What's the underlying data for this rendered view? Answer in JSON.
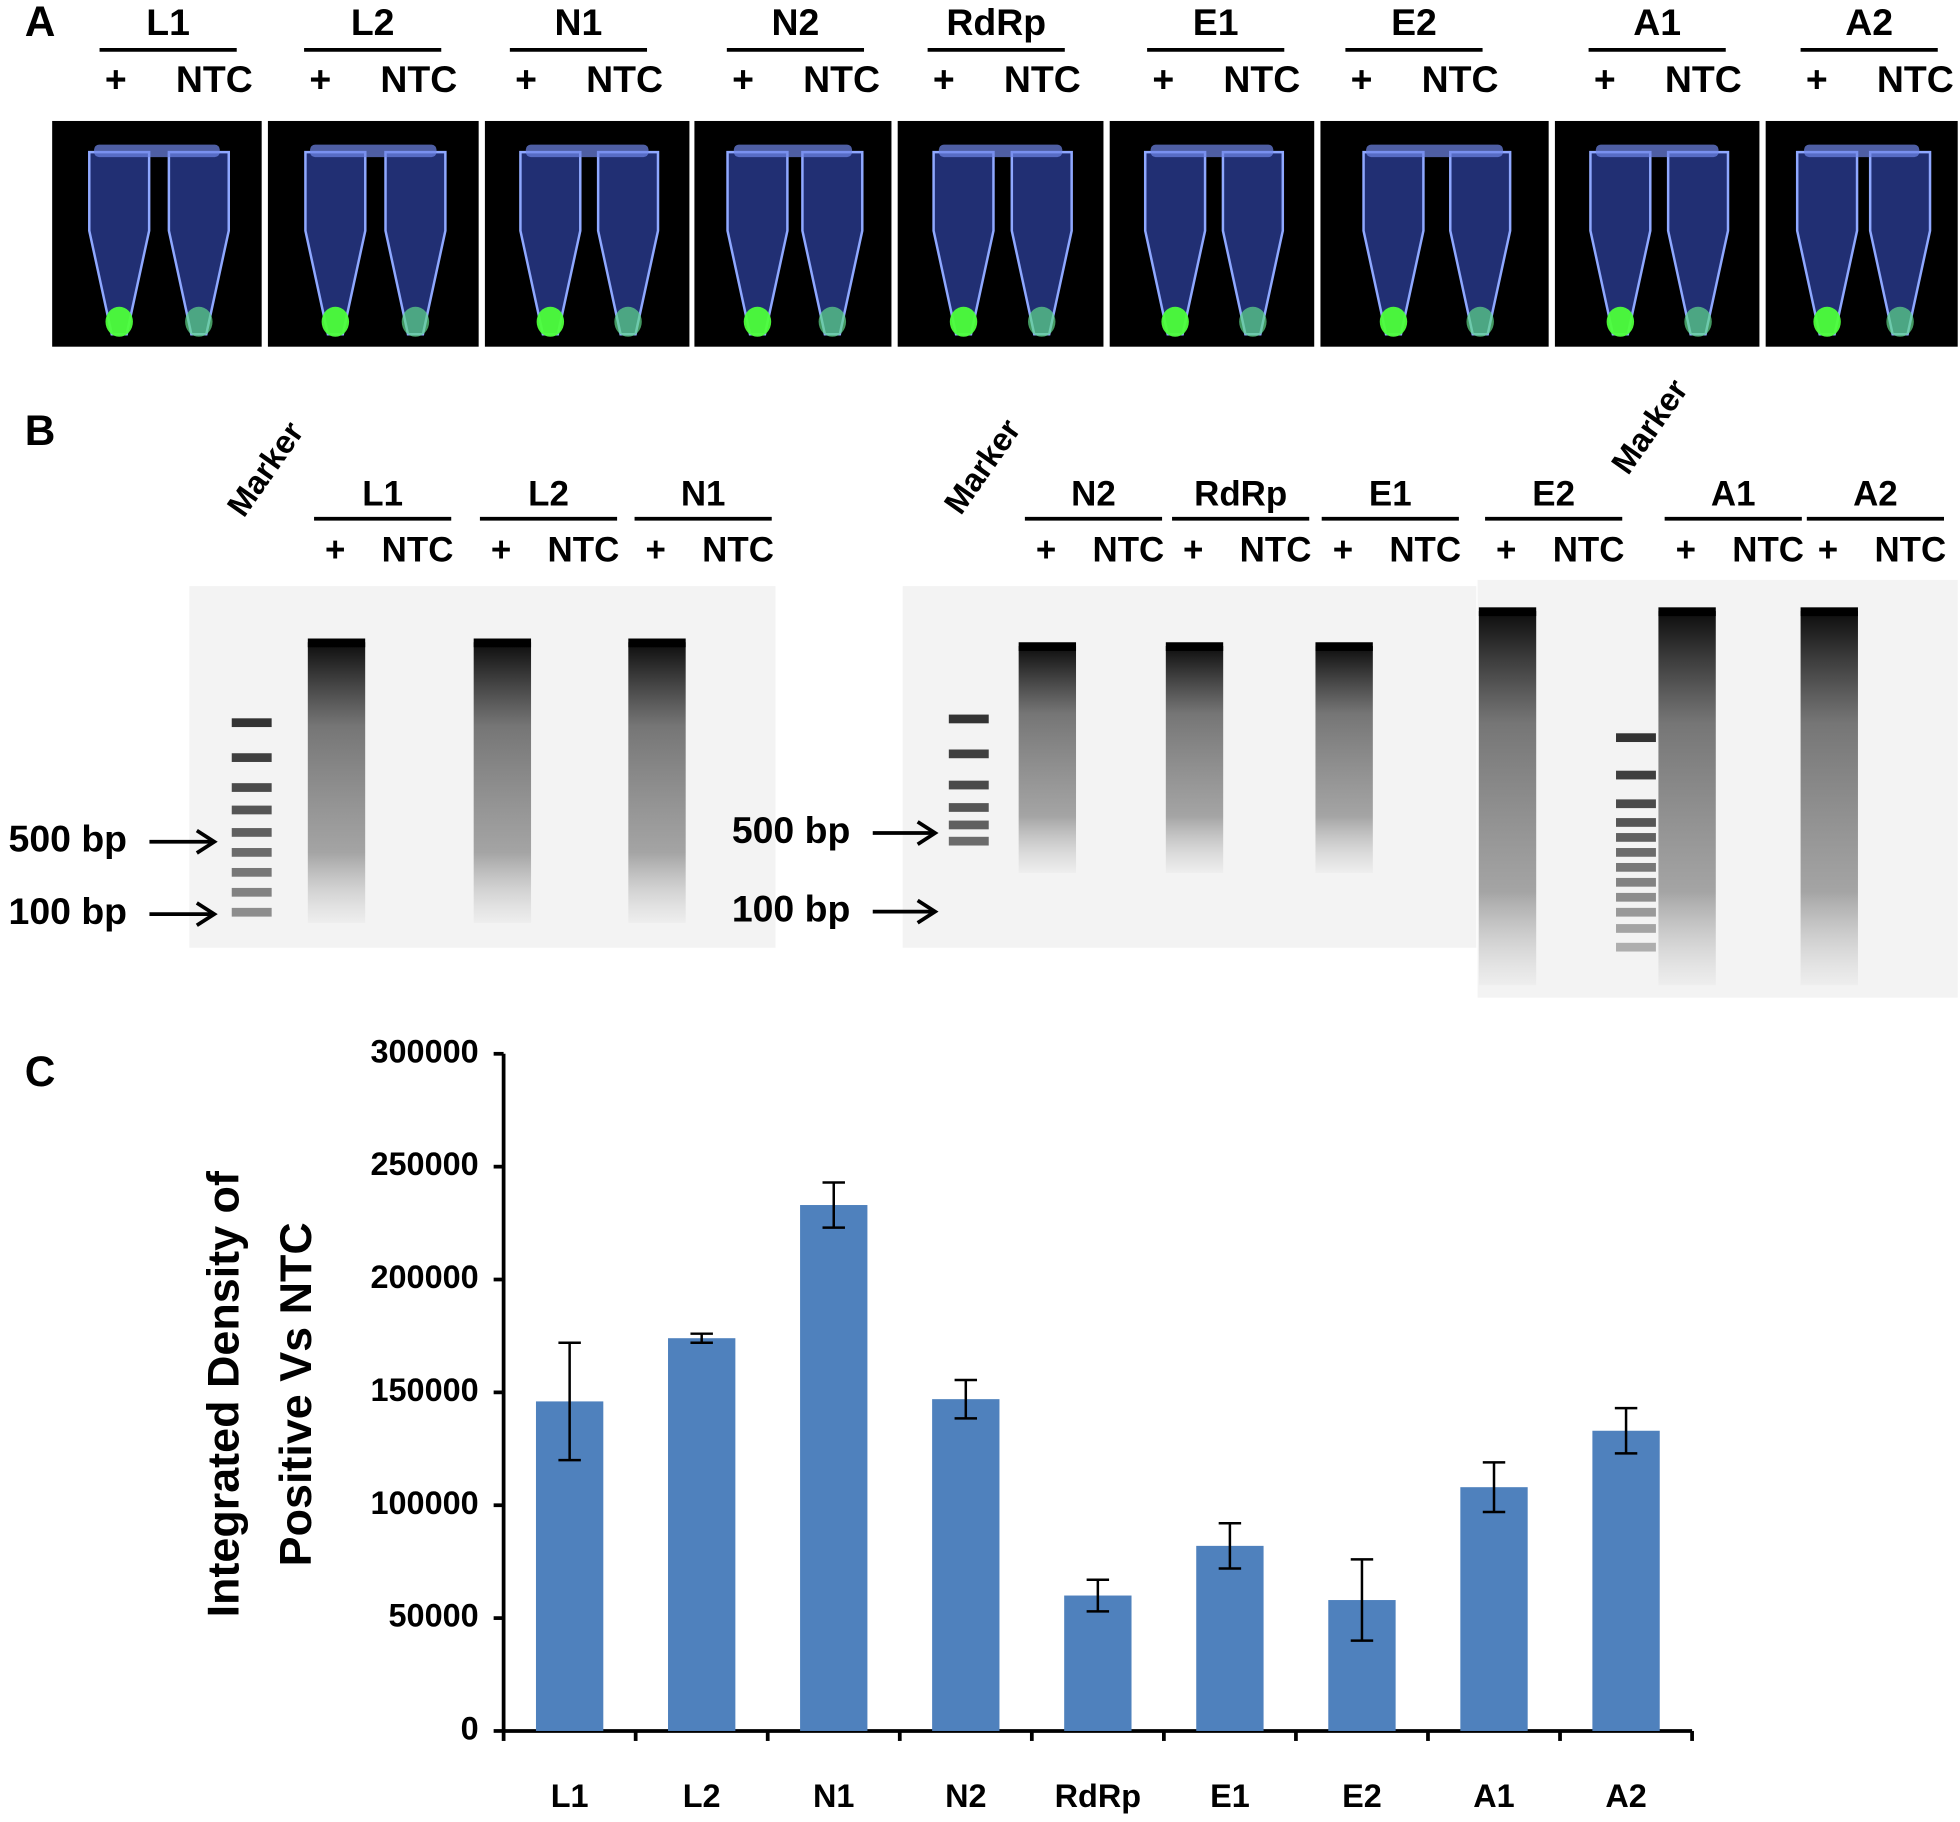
{
  "panel_a": {
    "label": "A",
    "samples": [
      {
        "name": "L1",
        "lanes": [
          "+",
          "NTC"
        ]
      },
      {
        "name": "L2",
        "lanes": [
          "+",
          "NTC"
        ]
      },
      {
        "name": "N1",
        "lanes": [
          "+",
          "NTC"
        ]
      },
      {
        "name": "N2",
        "lanes": [
          "+",
          "NTC"
        ]
      },
      {
        "name": "RdRp",
        "lanes": [
          "+",
          "NTC"
        ]
      },
      {
        "name": "E1",
        "lanes": [
          "+",
          "NTC"
        ]
      },
      {
        "name": "E2",
        "lanes": [
          "+",
          "NTC"
        ]
      },
      {
        "name": "A1",
        "lanes": [
          "+",
          "NTC"
        ]
      },
      {
        "name": "A2",
        "lanes": [
          "+",
          "NTC"
        ]
      }
    ]
  },
  "panel_b": {
    "label": "B",
    "gels": [
      {
        "columns": [
          {
            "marker": "Marker"
          },
          {
            "name": "L1",
            "lanes": [
              "+",
              "NTC"
            ]
          },
          {
            "name": "L2",
            "lanes": [
              "+",
              "NTC"
            ]
          },
          {
            "name": "N1",
            "lanes": [
              "+",
              "NTC"
            ]
          }
        ],
        "size_markers": [
          "500 bp",
          "100 bp"
        ]
      },
      {
        "columns": [
          {
            "marker": "Marker"
          },
          {
            "name": "N2",
            "lanes": [
              "+",
              "NTC"
            ]
          },
          {
            "name": "RdRp",
            "lanes": [
              "+",
              "NTC"
            ]
          },
          {
            "name": "E1",
            "lanes": [
              "+",
              "NTC"
            ]
          }
        ],
        "size_markers": [
          "500 bp",
          "100 bp"
        ]
      },
      {
        "columns": [
          {
            "name": "E2",
            "lanes": [
              "+",
              "NTC"
            ]
          },
          {
            "marker": "Marker"
          },
          {
            "name": "A1",
            "lanes": [
              "+",
              "NTC"
            ]
          },
          {
            "name": "A2",
            "lanes": [
              "+",
              "NTC"
            ]
          }
        ]
      }
    ]
  },
  "chart_data": {
    "type": "bar",
    "panel_label": "C",
    "ylabel": [
      "Integrated Density of",
      "Positive Vs NTC"
    ],
    "categories": [
      "L1",
      "L2",
      "N1",
      "N2",
      "RdRp",
      "E1",
      "E2",
      "A1",
      "A2"
    ],
    "values": [
      146000,
      174000,
      233000,
      147000,
      60000,
      82000,
      58000,
      108000,
      133000
    ],
    "errors": [
      26000,
      2000,
      10000,
      8500,
      7000,
      10000,
      18000,
      11000,
      10000
    ],
    "color": "#4f81bd",
    "ylim": [
      0,
      300000
    ],
    "yticks": [
      0,
      50000,
      100000,
      150000,
      200000,
      250000,
      300000
    ]
  }
}
